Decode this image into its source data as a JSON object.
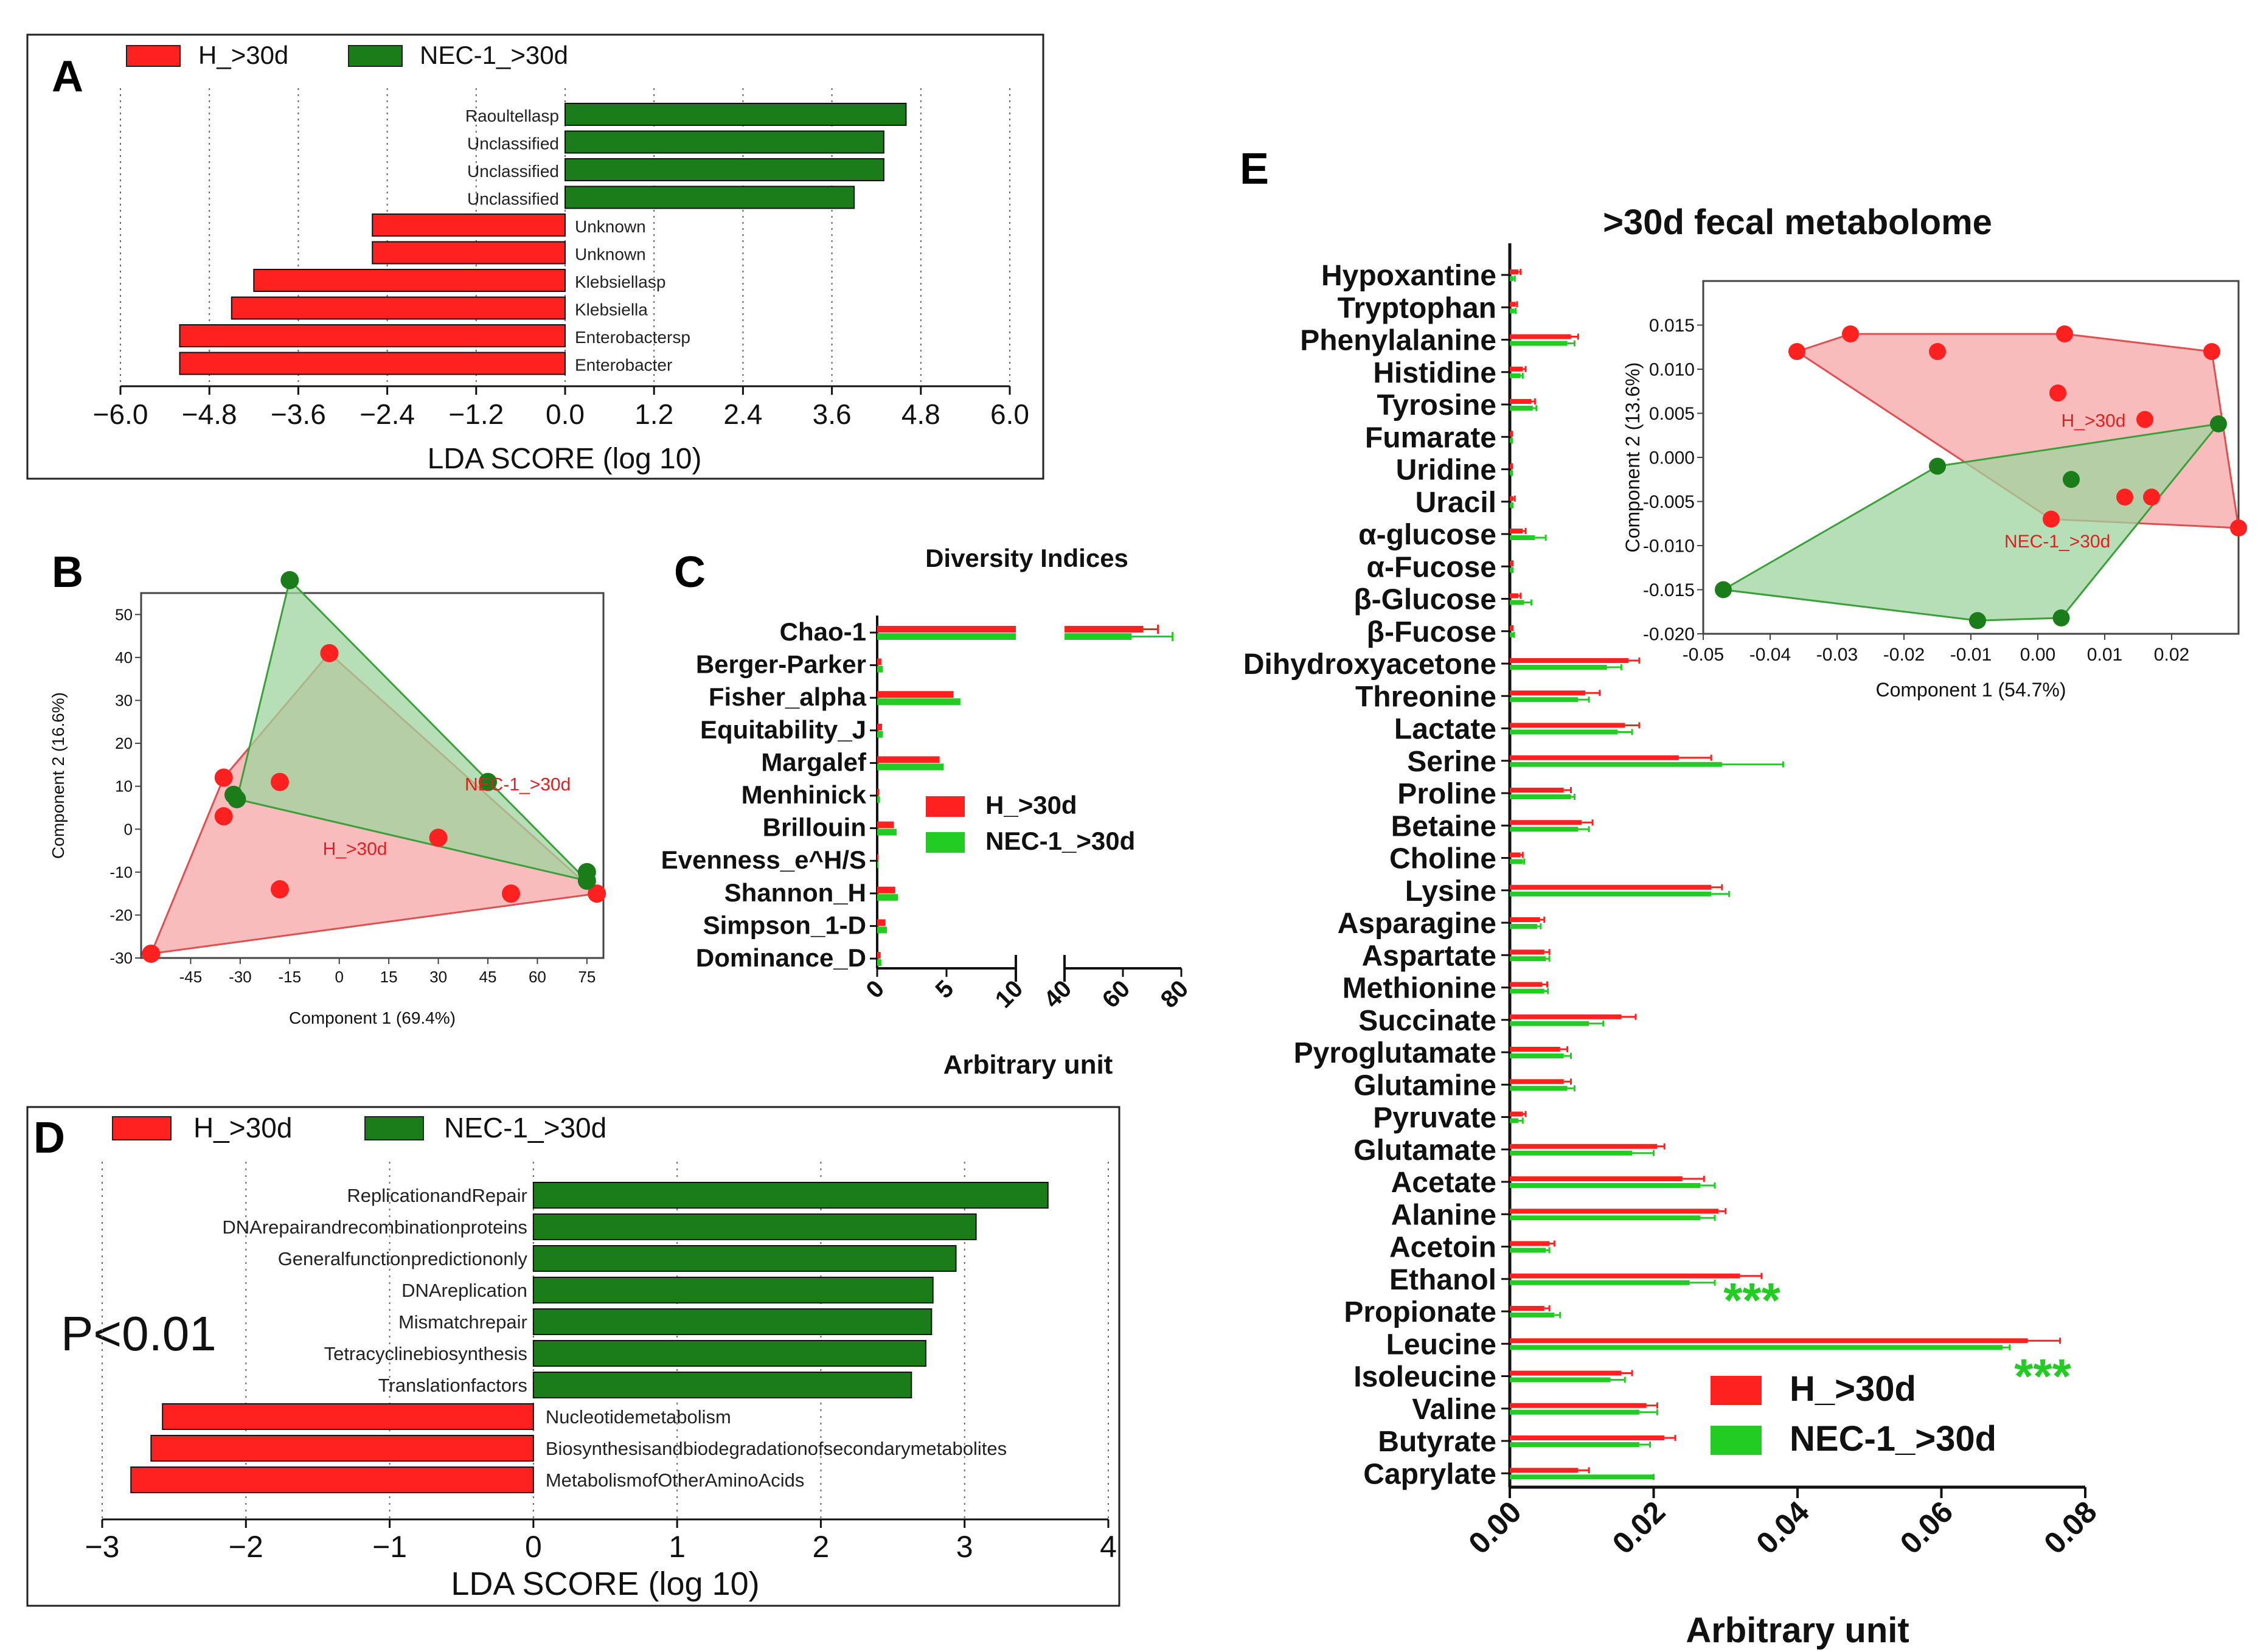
{
  "panels": {
    "a": "A",
    "b": "B",
    "c": "C",
    "d": "D",
    "e": "E"
  },
  "colors": {
    "red": "#ff2020",
    "green": "#1a7d1a",
    "light_green": "#22cc22",
    "red_fill": "#f7a5a5",
    "green_fill": "#9fd49f"
  },
  "chart_data": [
    {
      "id": "A",
      "type": "bar",
      "orientation": "horizontal",
      "legend": [
        "H_>30d",
        "NEC-1_>30d"
      ],
      "xlabel": "LDA SCORE (log 10)",
      "xlim": [
        -6.0,
        6.0
      ],
      "xticks": [
        "−6.0",
        "−4.8",
        "−3.6",
        "−2.4",
        "−1.2",
        "0.0",
        "1.2",
        "2.4",
        "3.6",
        "4.8",
        "6.0"
      ],
      "categories": [
        "Raoultellasp",
        "Unclassified",
        "Unclassified",
        "Unclassified",
        "Unknown",
        "Unknown",
        "Klebsiellasp",
        "Klebsiella",
        "Enterobactersp",
        "Enterobacter"
      ],
      "values": [
        4.6,
        4.3,
        4.3,
        3.9,
        -2.6,
        -2.6,
        -4.2,
        -4.5,
        -5.2,
        -5.2
      ],
      "groups": [
        1,
        1,
        1,
        1,
        0,
        0,
        0,
        0,
        0,
        0
      ]
    },
    {
      "id": "B",
      "type": "scatter",
      "xlabel": "Component 1 (69.4%)",
      "ylabel": "Component 2 (16.6%)",
      "xlim": [
        -60,
        80
      ],
      "ylim": [
        -30,
        55
      ],
      "xticks": [
        "-45",
        "-30",
        "-15",
        "0",
        "15",
        "30",
        "45",
        "60",
        "75"
      ],
      "yticks": [
        "50",
        "40",
        "30",
        "20",
        "10",
        "0",
        "-10",
        "-20",
        "-30"
      ],
      "series": [
        {
          "name": "H_>30d",
          "label": "H_>30d",
          "label_at": [
            -5,
            -6
          ],
          "hull": [
            [
              -57,
              -29
            ],
            [
              -35,
              12
            ],
            [
              -3,
              41
            ],
            [
              78,
              -15
            ]
          ],
          "points": [
            [
              -57,
              -29
            ],
            [
              -35,
              12
            ],
            [
              -35,
              3
            ],
            [
              -18,
              11
            ],
            [
              -3,
              41
            ],
            [
              30,
              -2
            ],
            [
              -18,
              -14
            ],
            [
              52,
              -15
            ],
            [
              78,
              -15
            ]
          ]
        },
        {
          "name": "NEC-1_>30d",
          "label": "NEC-1_>30d",
          "label_at": [
            38,
            9
          ],
          "hull": [
            [
              -15,
              58
            ],
            [
              75,
              -12
            ],
            [
              -31,
              7
            ]
          ],
          "points": [
            [
              -15,
              58
            ],
            [
              -31,
              7
            ],
            [
              -32,
              8
            ],
            [
              45,
              11
            ],
            [
              75,
              -10
            ],
            [
              75,
              -12
            ]
          ]
        }
      ]
    },
    {
      "id": "C",
      "type": "bar",
      "orientation": "horizontal",
      "title": "Diversity Indices",
      "xlabel": "Arbitrary unit",
      "broken_axis": {
        "left": [
          0,
          10
        ],
        "right": [
          40,
          80
        ]
      },
      "xticks": [
        "0",
        "5",
        "10",
        "40",
        "60",
        "80"
      ],
      "legend": [
        "H_>30d",
        "NEC-1_>30d"
      ],
      "categories": [
        "Chao-1",
        "Berger-Parker",
        "Fisher_alpha",
        "Equitability_J",
        "Margalef",
        "Menhinick",
        "Brillouin",
        "Evenness_e^H/S",
        "Shannon_H",
        "Simpson_1-D",
        "Dominance_D"
      ],
      "series": [
        {
          "name": "H_>30d",
          "values": [
            67,
            0.3,
            5.5,
            0.35,
            4.5,
            0.15,
            1.2,
            0.1,
            1.3,
            0.6,
            0.25
          ]
        },
        {
          "name": "NEC-1_>30d",
          "values": [
            63,
            0.4,
            6.0,
            0.4,
            4.8,
            0.2,
            1.4,
            0.1,
            1.5,
            0.7,
            0.3
          ]
        }
      ],
      "errors": [
        [
          [
            72,
            0.1,
            1,
            0.05,
            0.5,
            0.05,
            0.2,
            0.05,
            0.2,
            0.1,
            0.1
          ],
          [
            77,
            0.1,
            1,
            0.05,
            0.5,
            0.05,
            0.2,
            0.05,
            0.2,
            0.1,
            0.1
          ]
        ]
      ]
    },
    {
      "id": "D",
      "type": "bar",
      "orientation": "horizontal",
      "legend": [
        "H_>30d",
        "NEC-1_>30d"
      ],
      "xlabel": "LDA SCORE (log 10)",
      "xlim": [
        -3,
        4
      ],
      "xticks": [
        "−3",
        "−2",
        "−1",
        "0",
        "1",
        "2",
        "3",
        "4"
      ],
      "annotation": "P<0.01",
      "categories": [
        "ReplicationandRepair",
        "DNArepairandrecombinationproteins",
        "Generalfunctionpredictiononly",
        "DNAreplication",
        "Mismatchrepair",
        "Tetracyclinebiosynthesis",
        "Translationfactors",
        "Nucleotidemetabolism",
        "Biosynthesisandbiodegradationofsecondarymetabolites",
        "MetabolismofOtherAminoAcids"
      ],
      "values": [
        3.58,
        3.08,
        2.94,
        2.78,
        2.77,
        2.73,
        2.63,
        -2.58,
        -2.66,
        -2.8
      ],
      "groups": [
        1,
        1,
        1,
        1,
        1,
        1,
        1,
        0,
        0,
        0
      ]
    },
    {
      "id": "E",
      "type": "bar",
      "orientation": "horizontal",
      "title": ">30d fecal metabolome",
      "xlabel": "Arbitrary unit",
      "xlim": [
        0,
        0.08
      ],
      "xticks": [
        "0.00",
        "0.02",
        "0.04",
        "0.06",
        "0.08"
      ],
      "legend": [
        "H_>30d",
        "NEC-1_>30d"
      ],
      "significance": [
        {
          "category": "Propionate",
          "text": "***"
        },
        {
          "category": "Leucine",
          "text": "***"
        }
      ],
      "categories": [
        "Hypoxantine",
        "Tryptophan",
        "Phenylalanine",
        "Histidine",
        "Tyrosine",
        "Fumarate",
        "Uridine",
        "Uracil",
        "α-glucose",
        "α-Fucose",
        "β-Glucose",
        "β-Fucose",
        "Dihydroxyacetone",
        "Threonine",
        "Lactate",
        "Serine",
        "Proline",
        "Betaine",
        "Choline",
        "Lysine",
        "Asparagine",
        "Aspartate",
        "Methionine",
        "Succinate",
        "Pyroglutamate",
        "Glutamine",
        "Pyruvate",
        "Glutamate",
        "Acetate",
        "Alanine",
        "Acetoin",
        "Ethanol",
        "Propionate",
        "Leucine",
        "Isoleucine",
        "Valine",
        "Butyrate",
        "Caprylate"
      ],
      "series": [
        {
          "name": "H_>30d",
          "values": [
            0.0012,
            0.0008,
            0.0085,
            0.0018,
            0.003,
            0.0002,
            0.0002,
            0.0005,
            0.0018,
            0.0003,
            0.0012,
            0.0003,
            0.0165,
            0.0105,
            0.016,
            0.0235,
            0.0075,
            0.01,
            0.0015,
            0.028,
            0.0042,
            0.0048,
            0.0045,
            0.0155,
            0.007,
            0.0075,
            0.0018,
            0.0205,
            0.024,
            0.029,
            0.0055,
            0.032,
            0.0048,
            0.072,
            0.0155,
            0.019,
            0.0215,
            0.0095
          ]
        },
        {
          "name": "NEC-1_>30d",
          "values": [
            0.0005,
            0.0006,
            0.008,
            0.0015,
            0.0032,
            0.0002,
            0.0002,
            0.0003,
            0.0035,
            0.0003,
            0.002,
            0.0005,
            0.0135,
            0.0095,
            0.015,
            0.0295,
            0.0085,
            0.0095,
            0.0018,
            0.028,
            0.0038,
            0.005,
            0.0048,
            0.011,
            0.0075,
            0.008,
            0.0012,
            0.017,
            0.0265,
            0.0265,
            0.005,
            0.025,
            0.0062,
            0.0685,
            0.014,
            0.018,
            0.018,
            0.02
          ]
        }
      ],
      "errors": [
        {
          "name": "H_>30d",
          "values": [
            0.0015,
            0.001,
            0.0095,
            0.0022,
            0.0035,
            0.0003,
            0.0003,
            0.0007,
            0.0022,
            0.0004,
            0.0015,
            0.0004,
            0.018,
            0.0125,
            0.018,
            0.028,
            0.0085,
            0.0115,
            0.0018,
            0.0295,
            0.0048,
            0.0055,
            0.0052,
            0.0175,
            0.008,
            0.0085,
            0.0022,
            0.0215,
            0.027,
            0.03,
            0.0062,
            0.035,
            0.0055,
            0.0765,
            0.017,
            0.0205,
            0.023,
            0.011
          ]
        },
        {
          "name": "NEC-1_>30d",
          "values": [
            0.0007,
            0.0008,
            0.009,
            0.0018,
            0.0037,
            0.0003,
            0.0003,
            0.0004,
            0.005,
            0.0004,
            0.003,
            0.0006,
            0.0155,
            0.011,
            0.017,
            0.038,
            0.009,
            0.011,
            0.002,
            0.0305,
            0.0043,
            0.0055,
            0.0053,
            0.013,
            0.0085,
            0.009,
            0.0018,
            0.02,
            0.0285,
            0.0285,
            0.0055,
            0.0285,
            0.007,
            0.0695,
            0.016,
            0.0205,
            0.0195,
            0.02
          ]
        }
      ]
    },
    {
      "id": "E_inset",
      "type": "scatter",
      "xlabel": "Component 1 (54.7%)",
      "ylabel": "Component 2 (13.6%)",
      "xlim": [
        -0.05,
        0.03
      ],
      "ylim": [
        -0.02,
        0.02
      ],
      "xticks": [
        "-0.05",
        "-0.04",
        "-0.03",
        "-0.02",
        "-0.01",
        "0.00",
        "0.01",
        "0.02"
      ],
      "yticks": [
        "0.015",
        "0.010",
        "0.005",
        "0.000",
        "-0.005",
        "-0.010",
        "-0.015",
        "-0.020"
      ],
      "series": [
        {
          "name": "H_>30d",
          "label": "H_>30d",
          "label_at": [
            0.0035,
            0.0035
          ],
          "hull": [
            [
              -0.036,
              0.012
            ],
            [
              -0.028,
              0.014
            ],
            [
              0.004,
              0.014
            ],
            [
              0.026,
              0.012
            ],
            [
              0.03,
              -0.008
            ],
            [
              0.002,
              -0.007
            ]
          ],
          "points": [
            [
              -0.036,
              0.012
            ],
            [
              -0.028,
              0.014
            ],
            [
              -0.015,
              0.012
            ],
            [
              0.004,
              0.014
            ],
            [
              0.003,
              0.0073
            ],
            [
              0.016,
              0.0043
            ],
            [
              0.026,
              0.012
            ],
            [
              0.013,
              -0.0045
            ],
            [
              0.017,
              -0.0045
            ],
            [
              0.002,
              -0.007
            ],
            [
              0.03,
              -0.008
            ]
          ]
        },
        {
          "name": "NEC-1_>30d",
          "label": "NEC-1_>30d",
          "label_at": [
            -0.005,
            -0.0102
          ],
          "hull": [
            [
              -0.047,
              -0.015
            ],
            [
              -0.015,
              -0.001
            ],
            [
              0.027,
              0.0038
            ],
            [
              0.0035,
              -0.0182
            ],
            [
              -0.009,
              -0.0185
            ]
          ],
          "points": [
            [
              -0.047,
              -0.015
            ],
            [
              -0.015,
              -0.001
            ],
            [
              0.005,
              -0.0025
            ],
            [
              0.027,
              0.0038
            ],
            [
              0.0035,
              -0.0182
            ],
            [
              -0.009,
              -0.0185
            ]
          ]
        }
      ]
    }
  ]
}
